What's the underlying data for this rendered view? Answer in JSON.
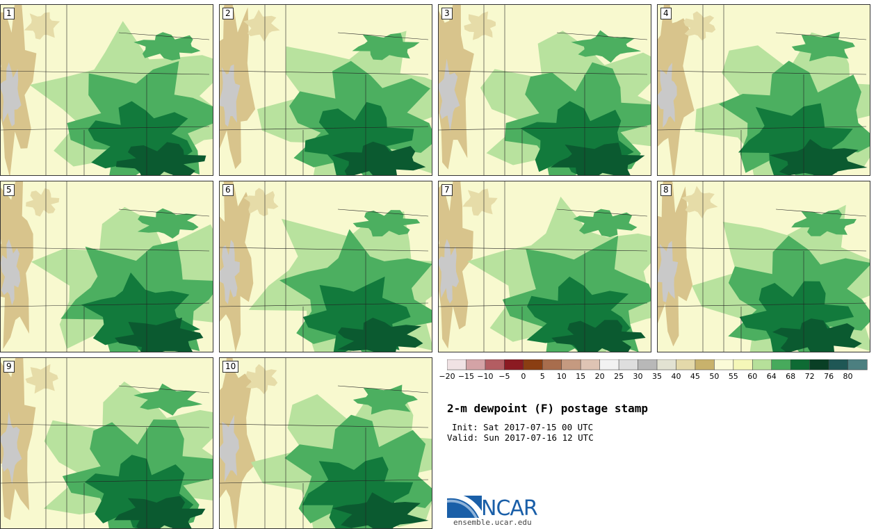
{
  "product_title": "2-m dewpoint (F) postage stamp",
  "init_text": "Init: Sat 2017-07-15 00 UTC",
  "valid_text": "Valid: Sun 2017-07-16 12 UTC",
  "members": [
    {
      "label": "1"
    },
    {
      "label": "2"
    },
    {
      "label": "3"
    },
    {
      "label": "4"
    },
    {
      "label": "5"
    },
    {
      "label": "6"
    },
    {
      "label": "7"
    },
    {
      "label": "8"
    },
    {
      "label": "9"
    },
    {
      "label": "10"
    }
  ],
  "colorbar": {
    "colors": [
      "#f0e2e4",
      "#d4a3a6",
      "#b35d62",
      "#8b1a22",
      "#8a3e12",
      "#a86d4d",
      "#c59a80",
      "#dfc4b4",
      "#f2f2f2",
      "#dedede",
      "#b8b8b8",
      "#e2e2d2",
      "#e4d9aa",
      "#c8b26c",
      "#fbfbd8",
      "#f5f7b8",
      "#b6e09a",
      "#47aa5c",
      "#0e6b34",
      "#093f25",
      "#1f5755",
      "#4c7f80"
    ],
    "tick_labels": [
      "−20",
      "−15",
      "−10",
      "−5",
      "0",
      "5",
      "10",
      "15",
      "20",
      "25",
      "30",
      "35",
      "40",
      "45",
      "50",
      "55",
      "60",
      "64",
      "68",
      "72",
      "76",
      "80"
    ]
  },
  "logo": {
    "text": "NCAR",
    "url": "ensemble.ucar.edu"
  }
}
